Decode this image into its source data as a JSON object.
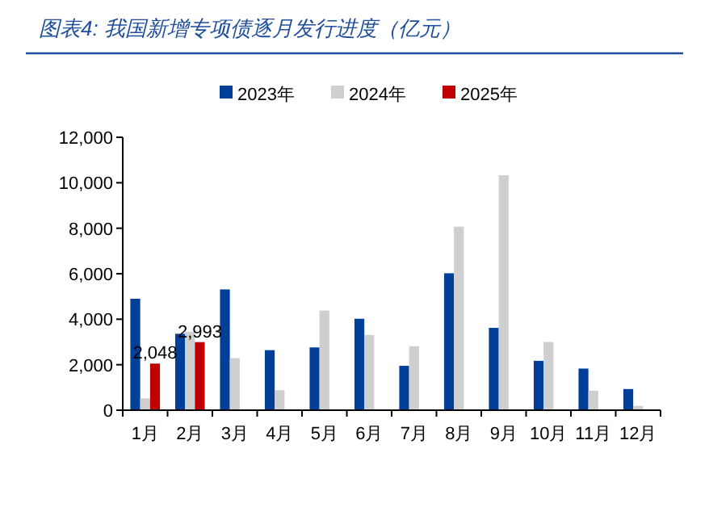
{
  "chart_data": {
    "type": "bar",
    "title": "图表4:  我国新增专项债逐月发行进度（亿元）",
    "categories": [
      "1月",
      "2月",
      "3月",
      "4月",
      "5月",
      "6月",
      "7月",
      "8月",
      "9月",
      "10月",
      "11月",
      "12月"
    ],
    "series": [
      {
        "name": "2023年",
        "color": "#003f98",
        "values": [
          4900,
          3360,
          5310,
          2640,
          2760,
          4020,
          1950,
          6020,
          3620,
          2170,
          1830,
          930
        ]
      },
      {
        "name": "2024年",
        "color": "#cfcfcf",
        "values": [
          520,
          3450,
          2290,
          880,
          4380,
          3310,
          2810,
          8070,
          10330,
          3000,
          860,
          190
        ]
      },
      {
        "name": "2025年",
        "color": "#c00000",
        "values": [
          2048,
          2993,
          null,
          null,
          null,
          null,
          null,
          null,
          null,
          null,
          null,
          null
        ],
        "value_labels": [
          "2,048",
          "2,993",
          null,
          null,
          null,
          null,
          null,
          null,
          null,
          null,
          null,
          null
        ]
      }
    ],
    "ylim": [
      0,
      12000
    ],
    "yticks": [
      0,
      {
        "value": 2000,
        "label": "2,000"
      },
      {
        "value": 4000,
        "label": "4,000"
      },
      {
        "value": 6000,
        "label": "6,000"
      },
      {
        "value": 8000,
        "label": "8,000"
      },
      {
        "value": 10000,
        "label": "10,000"
      },
      {
        "value": 12000,
        "label": "12,000"
      }
    ],
    "legend": "top",
    "grid": false
  }
}
